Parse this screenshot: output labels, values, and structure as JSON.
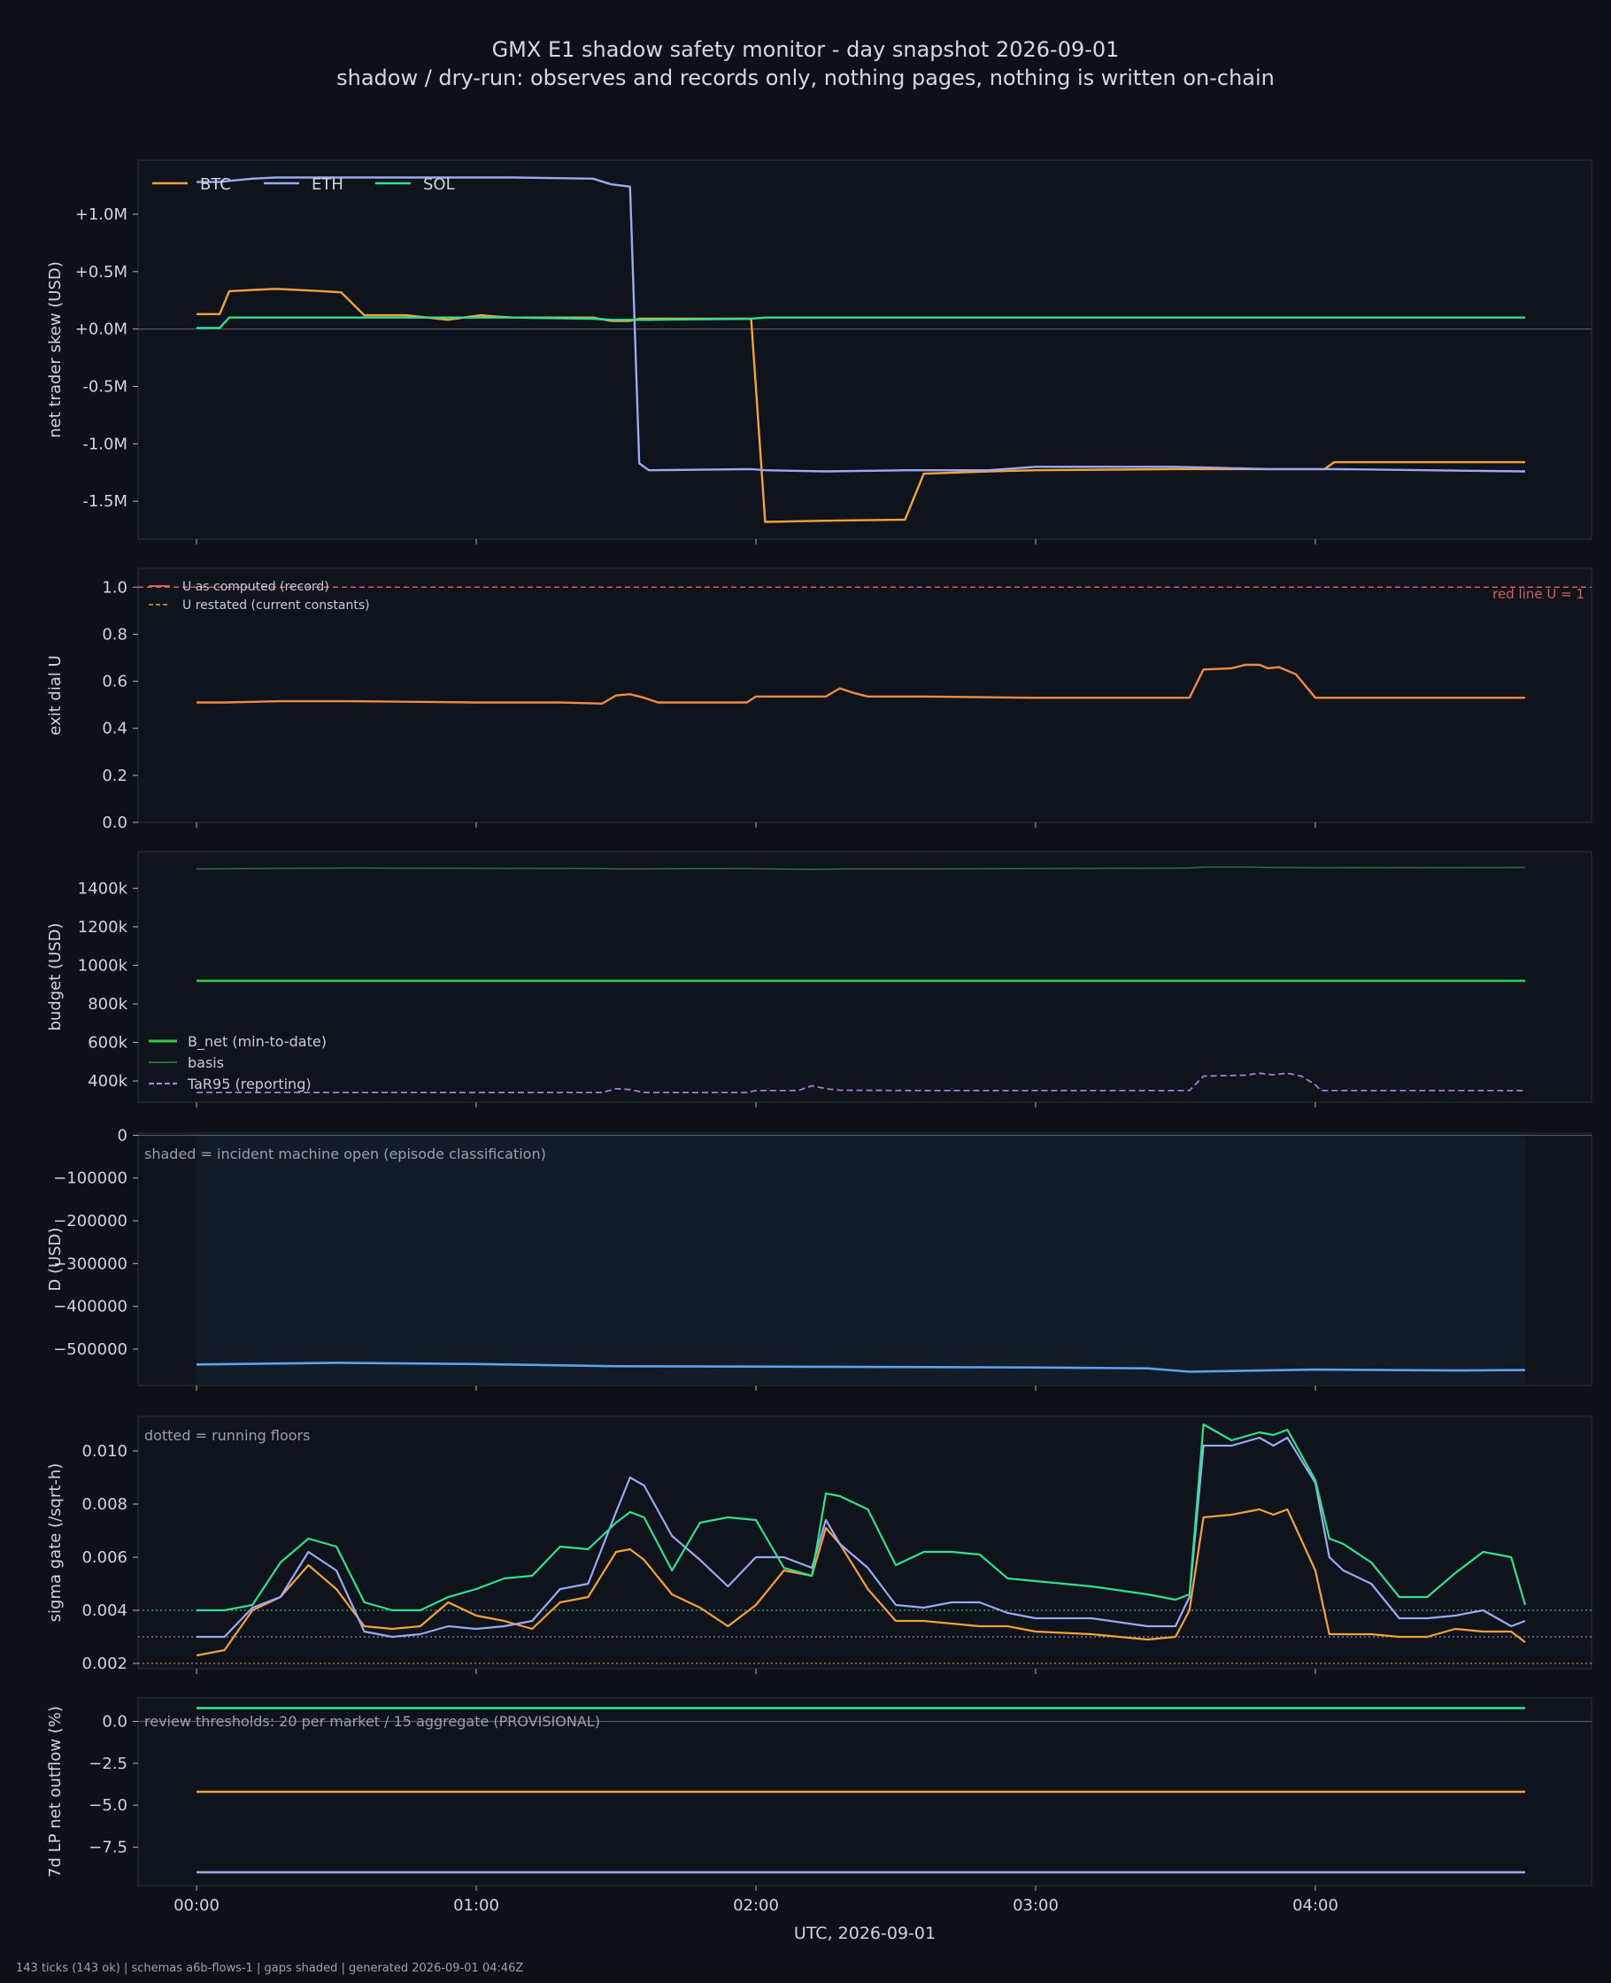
{
  "header": {
    "title": "GMX E1 shadow safety monitor - day snapshot 2026-09-01",
    "subtitle": "shadow / dry-run: observes and records only, nothing pages, nothing is written on-chain"
  },
  "footer": {
    "text": "143 ticks (143 ok) | schemas a6b-flows-1 | gaps shaded | generated 2026-09-01 04:46Z"
  },
  "colors": {
    "btc": "#f5a13a",
    "eth": "#9aa9f2",
    "sol": "#2fe08e",
    "red": "#e05a5a",
    "green": "#33c94a",
    "purple": "#a37fd9",
    "blue": "#5aa3f0",
    "background": "#0d1017",
    "panel": "#0f131b"
  },
  "chart_data": [
    {
      "type": "line",
      "ylabel": "net trader skew (USD)",
      "yticks": [
        "+1.0M",
        "+0.5M",
        "+0.0M",
        "-0.5M",
        "-1.0M",
        "-1.5M"
      ],
      "ylim": [
        -1.83,
        1.47
      ],
      "legend": {
        "placement": "top-left",
        "entries": [
          "BTC",
          "ETH",
          "SOL"
        ]
      },
      "x": [
        0,
        0.083,
        0.117,
        0.2,
        0.283,
        0.367,
        0.45,
        0.517,
        0.6,
        0.75,
        0.9,
        0.983,
        1.017,
        1.067,
        1.133,
        1.417,
        1.483,
        1.55,
        1.583,
        1.617,
        1.983,
        2.033,
        2.25,
        2.533,
        2.6,
        2.833,
        3,
        3.5,
        3.667,
        3.833,
        4.033,
        4.067,
        4.4,
        4.75
      ],
      "series": [
        {
          "name": "BTC",
          "values": [
            0.13,
            0.13,
            0.33,
            0.34,
            0.35,
            0.34,
            0.33,
            0.32,
            0.12,
            0.12,
            0.08,
            0.11,
            0.12,
            0.11,
            0.1,
            0.1,
            0.07,
            0.07,
            0.09,
            0.09,
            0.09,
            -1.68,
            -1.67,
            -1.66,
            -1.26,
            -1.24,
            -1.23,
            -1.22,
            -1.22,
            -1.22,
            -1.22,
            -1.16,
            -1.16,
            -1.16
          ]
        },
        {
          "name": "ETH",
          "values": [
            1.28,
            1.28,
            1.29,
            1.31,
            1.32,
            1.32,
            1.32,
            1.32,
            1.32,
            1.32,
            1.32,
            1.32,
            1.32,
            1.32,
            1.32,
            1.31,
            1.26,
            1.24,
            -1.17,
            -1.23,
            -1.22,
            -1.23,
            -1.24,
            -1.23,
            -1.23,
            -1.23,
            -1.2,
            -1.2,
            -1.21,
            -1.22,
            -1.22,
            -1.22,
            -1.23,
            -1.24
          ]
        },
        {
          "name": "SOL",
          "values": [
            0.01,
            0.01,
            0.1,
            0.1,
            0.1,
            0.1,
            0.1,
            0.1,
            0.1,
            0.1,
            0.1,
            0.1,
            0.1,
            0.1,
            0.1,
            0.09,
            0.08,
            0.08,
            0.08,
            0.08,
            0.09,
            0.1,
            0.1,
            0.1,
            0.1,
            0.1,
            0.1,
            0.1,
            0.1,
            0.1,
            0.1,
            0.1,
            0.1,
            0.1
          ]
        }
      ]
    },
    {
      "type": "line",
      "ylabel": "exit dial U",
      "yticks": [
        "1.0",
        "0.8",
        "0.6",
        "0.4",
        "0.2",
        "0.0"
      ],
      "ylim": [
        0,
        1.08
      ],
      "legend": {
        "placement": "top-left",
        "entries": [
          "U as computed (record)",
          "U restated (current constants)"
        ]
      },
      "annotation": "red line U = 1",
      "threshold": 1.0,
      "x": [
        0,
        0.1,
        0.3,
        0.55,
        1.0,
        1.3,
        1.45,
        1.5,
        1.55,
        1.6,
        1.65,
        1.967,
        2.0,
        2.25,
        2.3,
        2.35,
        2.4,
        2.6,
        3.0,
        3.55,
        3.6,
        3.7,
        3.75,
        3.8,
        3.83,
        3.87,
        3.93,
        4.0,
        4.25,
        4.75
      ],
      "series": [
        {
          "name": "U as computed (record)",
          "values": [
            0.51,
            0.51,
            0.515,
            0.515,
            0.51,
            0.51,
            0.505,
            0.54,
            0.545,
            0.53,
            0.51,
            0.51,
            0.535,
            0.535,
            0.57,
            0.55,
            0.535,
            0.535,
            0.53,
            0.53,
            0.65,
            0.655,
            0.67,
            0.67,
            0.655,
            0.66,
            0.63,
            0.53,
            0.53,
            0.53
          ]
        }
      ]
    },
    {
      "type": "line",
      "ylabel": "budget (USD)",
      "yticks": [
        "1400k",
        "1200k",
        "1000k",
        "800k",
        "600k",
        "400k"
      ],
      "ylim": [
        290000,
        1590000
      ],
      "legend": {
        "placement": "bottom-left",
        "entries": [
          "B_net (min-to-date)",
          "basis",
          "TaR95 (reporting)"
        ]
      },
      "x": [
        0,
        0.55,
        1.0,
        1.45,
        1.5,
        1.55,
        1.6,
        1.667,
        1.967,
        2.0,
        2.15,
        2.2,
        2.25,
        2.3,
        2.6,
        3.0,
        3.55,
        3.6,
        3.75,
        3.8,
        3.85,
        3.9,
        3.95,
        4.0,
        4.02,
        4.75
      ],
      "series": [
        {
          "name": "B_net (min-to-date)",
          "values": [
            920000,
            920000,
            920000,
            920000,
            920000,
            920000,
            920000,
            920000,
            920000,
            920000,
            920000,
            920000,
            920000,
            920000,
            920000,
            920000,
            920000,
            920000,
            920000,
            920000,
            920000,
            920000,
            920000,
            920000,
            920000,
            920000
          ]
        },
        {
          "name": "basis",
          "values": [
            1500000,
            1505000,
            1503000,
            1502000,
            1500000,
            1500000,
            1500000,
            1501000,
            1502000,
            1501000,
            1499000,
            1498000,
            1499000,
            1500000,
            1500000,
            1502000,
            1505000,
            1510000,
            1510000,
            1509000,
            1508000,
            1508000,
            1507000,
            1506000,
            1506000,
            1508000
          ]
        },
        {
          "name": "TaR95 (reporting)",
          "values": [
            340000,
            340000,
            340000,
            340000,
            360000,
            355000,
            340000,
            340000,
            340000,
            350000,
            350000,
            375000,
            360000,
            352000,
            350000,
            350000,
            350000,
            425000,
            430000,
            440000,
            432000,
            440000,
            425000,
            380000,
            350000,
            350000
          ]
        }
      ]
    },
    {
      "type": "area",
      "ylabel": "D (USD)",
      "yticks": [
        "0",
        "−100000",
        "−200000",
        "−300000",
        "−400000",
        "−500000"
      ],
      "ylim": [
        -585000,
        5000
      ],
      "annotation": "shaded = incident machine open (episode classification)",
      "shaded_range": [
        0,
        4.75
      ],
      "x": [
        0,
        0.5,
        1.0,
        1.5,
        2.0,
        2.5,
        3.0,
        3.4,
        3.55,
        4.0,
        4.5,
        4.75
      ],
      "series": [
        {
          "name": "D",
          "values": [
            -536000,
            -532000,
            -535000,
            -540000,
            -541000,
            -542000,
            -543000,
            -545000,
            -553000,
            -548000,
            -550000,
            -549000
          ]
        }
      ]
    },
    {
      "type": "line",
      "ylabel": "sigma gate (/sqrt-h)",
      "yticks": [
        "0.010",
        "0.008",
        "0.006",
        "0.004",
        "0.002"
      ],
      "ylim": [
        0.0018,
        0.0113
      ],
      "annotation": "dotted = running floors",
      "floors": [
        0.004,
        0.003,
        0.002
      ],
      "x": [
        0,
        0.1,
        0.2,
        0.3,
        0.4,
        0.5,
        0.6,
        0.7,
        0.8,
        0.9,
        1.0,
        1.1,
        1.2,
        1.3,
        1.4,
        1.5,
        1.55,
        1.6,
        1.7,
        1.8,
        1.9,
        2.0,
        2.1,
        2.2,
        2.25,
        2.3,
        2.4,
        2.5,
        2.6,
        2.7,
        2.8,
        2.9,
        3.0,
        3.2,
        3.4,
        3.5,
        3.55,
        3.6,
        3.7,
        3.8,
        3.85,
        3.9,
        4.0,
        4.05,
        4.1,
        4.2,
        4.3,
        4.4,
        4.5,
        4.6,
        4.7,
        4.75
      ],
      "series": [
        {
          "name": "BTC",
          "values": [
            0.0023,
            0.0025,
            0.004,
            0.0045,
            0.0057,
            0.0048,
            0.0034,
            0.0033,
            0.0034,
            0.0043,
            0.0038,
            0.0036,
            0.0033,
            0.0043,
            0.0045,
            0.0062,
            0.0063,
            0.0059,
            0.0046,
            0.0041,
            0.0034,
            0.0042,
            0.0055,
            0.0053,
            0.0071,
            0.0065,
            0.0048,
            0.0036,
            0.0036,
            0.0035,
            0.0034,
            0.0034,
            0.0032,
            0.0031,
            0.0029,
            0.003,
            0.004,
            0.0075,
            0.0076,
            0.0078,
            0.0076,
            0.0078,
            0.0055,
            0.0031,
            0.0031,
            0.0031,
            0.003,
            0.003,
            0.0033,
            0.0032,
            0.0032,
            0.0028
          ]
        },
        {
          "name": "ETH",
          "values": [
            0.003,
            0.003,
            0.0041,
            0.0045,
            0.0062,
            0.0055,
            0.0032,
            0.003,
            0.0031,
            0.0034,
            0.0033,
            0.0034,
            0.0036,
            0.0048,
            0.005,
            0.0077,
            0.009,
            0.0087,
            0.0068,
            0.0059,
            0.0049,
            0.006,
            0.006,
            0.0056,
            0.0074,
            0.0065,
            0.0056,
            0.0042,
            0.0041,
            0.0043,
            0.0043,
            0.0039,
            0.0037,
            0.0037,
            0.0034,
            0.0034,
            0.0045,
            0.0102,
            0.0102,
            0.0105,
            0.0102,
            0.0105,
            0.0088,
            0.006,
            0.0055,
            0.005,
            0.0037,
            0.0037,
            0.0038,
            0.004,
            0.0034,
            0.0036
          ]
        },
        {
          "name": "SOL",
          "values": [
            0.004,
            0.004,
            0.0042,
            0.0058,
            0.0067,
            0.0064,
            0.0043,
            0.004,
            0.004,
            0.0045,
            0.0048,
            0.0052,
            0.0053,
            0.0064,
            0.0063,
            0.0073,
            0.0077,
            0.0075,
            0.0055,
            0.0073,
            0.0075,
            0.0074,
            0.0056,
            0.0053,
            0.0084,
            0.0083,
            0.0078,
            0.0057,
            0.0062,
            0.0062,
            0.0061,
            0.0052,
            0.0051,
            0.0049,
            0.0046,
            0.0044,
            0.0046,
            0.011,
            0.0104,
            0.0107,
            0.0106,
            0.0108,
            0.0089,
            0.0067,
            0.0065,
            0.0058,
            0.0045,
            0.0045,
            0.0054,
            0.0062,
            0.006,
            0.0042
          ]
        }
      ]
    },
    {
      "type": "line",
      "ylabel": "7d LP net outflow (%)",
      "yticks": [
        "0.0",
        "−2.5",
        "−5.0",
        "−7.5"
      ],
      "ylim": [
        -9.8,
        1.4
      ],
      "annotation": "review thresholds: 20 per market / 15 aggregate (PROVISIONAL)",
      "xlabel": "UTC, 2026-09-01",
      "xticks": [
        "00:00",
        "01:00",
        "02:00",
        "03:00",
        "04:00"
      ],
      "x": [
        0,
        4.75
      ],
      "series": [
        {
          "name": "SOL",
          "values": [
            0.8,
            0.8
          ]
        },
        {
          "name": "BTC",
          "values": [
            -4.2,
            -4.2
          ]
        },
        {
          "name": "ETH",
          "values": [
            -9.0,
            -9.0
          ]
        }
      ]
    }
  ]
}
